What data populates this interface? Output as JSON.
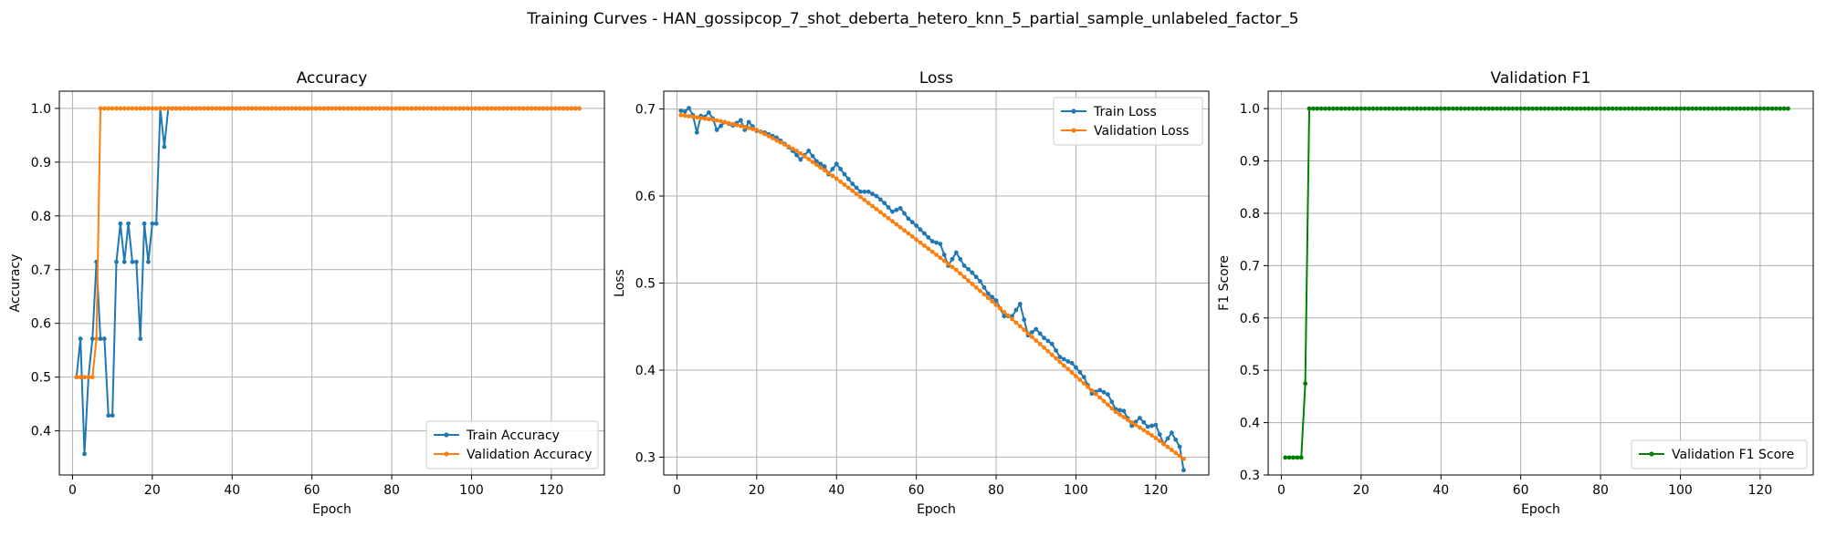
{
  "figure": {
    "suptitle": "Training Curves - HAN_gossipcop_7_shot_deberta_hetero_knn_5_partial_sample_unlabeled_factor_5"
  },
  "colors": {
    "train": "#1f77b4",
    "validation": "#ff7f0e",
    "f1": "#008000"
  },
  "chart_data": [
    {
      "type": "line",
      "title": "Accuracy",
      "xlabel": "Epoch",
      "ylabel": "Accuracy",
      "xlim": [
        -3.3,
        133.3
      ],
      "ylim": [
        0.3179,
        1.0321
      ],
      "xticks": [
        0,
        20,
        40,
        60,
        80,
        100,
        120
      ],
      "yticks": [
        0.4,
        0.5,
        0.6,
        0.7,
        0.8,
        0.9,
        1.0
      ],
      "ytick_labels": [
        "0.4",
        "0.5",
        "0.6",
        "0.7",
        "0.8",
        "0.9",
        "1.0"
      ],
      "grid": true,
      "legend_position": "lower right",
      "series": [
        {
          "name": "Train Accuracy",
          "color": "#1f77b4",
          "x_start": 1,
          "x_end": 127,
          "y_head": [
            0.5,
            0.5714,
            0.3571,
            0.5,
            0.5714,
            0.7143,
            0.5714,
            0.5714,
            0.4286,
            0.4286,
            0.7143,
            0.7857,
            0.7143,
            0.7857,
            0.7143,
            0.7143,
            0.5714,
            0.7857,
            0.7143,
            0.7857,
            0.7857,
            1.0,
            0.9286
          ],
          "y_tail": 1.0
        },
        {
          "name": "Validation Accuracy",
          "color": "#ff7f0e",
          "x_start": 1,
          "x_end": 127,
          "y_head": [
            0.5,
            0.5,
            0.5,
            0.5,
            0.5,
            0.5714
          ],
          "y_tail": 1.0
        }
      ]
    },
    {
      "type": "line",
      "title": "Loss",
      "xlabel": "Epoch",
      "ylabel": "Loss",
      "xlim": [
        -3.3,
        133.3
      ],
      "ylim": [
        0.2795,
        0.7205
      ],
      "xticks": [
        0,
        20,
        40,
        60,
        80,
        100,
        120
      ],
      "yticks": [
        0.3,
        0.4,
        0.5,
        0.6,
        0.7
      ],
      "ytick_labels": [
        "0.3",
        "0.4",
        "0.5",
        "0.6",
        "0.7"
      ],
      "grid": true,
      "legend_position": "upper right",
      "series": [
        {
          "name": "Train Loss",
          "color": "#1f77b4",
          "x_start": 1,
          "x_end": 127,
          "y_keys": [
            [
              1,
              0.698
            ],
            [
              2,
              0.697
            ],
            [
              3,
              0.701
            ],
            [
              4,
              0.693
            ],
            [
              5,
              0.673
            ],
            [
              6,
              0.692
            ],
            [
              7,
              0.691
            ],
            [
              8,
              0.696
            ],
            [
              9,
              0.689
            ],
            [
              10,
              0.676
            ],
            [
              12,
              0.685
            ],
            [
              14,
              0.681
            ],
            [
              16,
              0.687
            ],
            [
              17,
              0.676
            ],
            [
              18,
              0.685
            ],
            [
              20,
              0.675
            ],
            [
              22,
              0.673
            ],
            [
              25,
              0.667
            ],
            [
              27,
              0.66
            ],
            [
              29,
              0.652
            ],
            [
              31,
              0.642
            ],
            [
              33,
              0.652
            ],
            [
              35,
              0.64
            ],
            [
              37,
              0.634
            ],
            [
              38,
              0.625
            ],
            [
              40,
              0.637
            ],
            [
              42,
              0.625
            ],
            [
              44,
              0.614
            ],
            [
              46,
              0.605
            ],
            [
              48,
              0.605
            ],
            [
              50,
              0.6
            ],
            [
              52,
              0.592
            ],
            [
              54,
              0.582
            ],
            [
              56,
              0.586
            ],
            [
              58,
              0.574
            ],
            [
              60,
              0.566
            ],
            [
              62,
              0.557
            ],
            [
              64,
              0.548
            ],
            [
              66,
              0.545
            ],
            [
              68,
              0.52
            ],
            [
              70,
              0.535
            ],
            [
              72,
              0.52
            ],
            [
              74,
              0.512
            ],
            [
              76,
              0.502
            ],
            [
              78,
              0.488
            ],
            [
              80,
              0.48
            ],
            [
              82,
              0.462
            ],
            [
              84,
              0.462
            ],
            [
              86,
              0.476
            ],
            [
              88,
              0.44
            ],
            [
              90,
              0.447
            ],
            [
              92,
              0.437
            ],
            [
              94,
              0.43
            ],
            [
              96,
              0.415
            ],
            [
              98,
              0.41
            ],
            [
              99,
              0.408
            ],
            [
              100,
              0.403
            ],
            [
              102,
              0.392
            ],
            [
              104,
              0.373
            ],
            [
              106,
              0.377
            ],
            [
              108,
              0.372
            ],
            [
              110,
              0.355
            ],
            [
              112,
              0.353
            ],
            [
              114,
              0.336
            ],
            [
              116,
              0.345
            ],
            [
              118,
              0.335
            ],
            [
              120,
              0.337
            ],
            [
              122,
              0.315
            ],
            [
              124,
              0.328
            ],
            [
              126,
              0.312
            ],
            [
              127,
              0.285
            ]
          ]
        },
        {
          "name": "Validation Loss",
          "color": "#ff7f0e",
          "x_start": 1,
          "x_end": 127,
          "y_keys": [
            [
              1,
              0.693
            ],
            [
              10,
              0.687
            ],
            [
              20,
              0.676
            ],
            [
              30,
              0.652
            ],
            [
              40,
              0.62
            ],
            [
              50,
              0.585
            ],
            [
              60,
              0.55
            ],
            [
              70,
              0.515
            ],
            [
              80,
              0.475
            ],
            [
              90,
              0.434
            ],
            [
              100,
              0.393
            ],
            [
              110,
              0.352
            ],
            [
              120,
              0.322
            ],
            [
              127,
              0.298
            ]
          ]
        }
      ]
    },
    {
      "type": "line",
      "title": "Validation F1",
      "xlabel": "Epoch",
      "ylabel": "F1 Score",
      "xlim": [
        -3.3,
        133.3
      ],
      "ylim": [
        0.3,
        1.0333
      ],
      "xticks": [
        0,
        20,
        40,
        60,
        80,
        100,
        120
      ],
      "yticks": [
        0.3,
        0.4,
        0.5,
        0.6,
        0.7,
        0.8,
        0.9,
        1.0
      ],
      "ytick_labels": [
        "0.3",
        "0.4",
        "0.5",
        "0.6",
        "0.7",
        "0.8",
        "0.9",
        "1.0"
      ],
      "grid": true,
      "legend_position": "lower right",
      "series": [
        {
          "name": "Validation F1 Score",
          "color": "#008000",
          "x_start": 1,
          "x_end": 127,
          "y_head": [
            0.3333,
            0.3333,
            0.3333,
            0.3333,
            0.3333,
            0.4747
          ],
          "y_tail": 1.0
        }
      ]
    }
  ]
}
